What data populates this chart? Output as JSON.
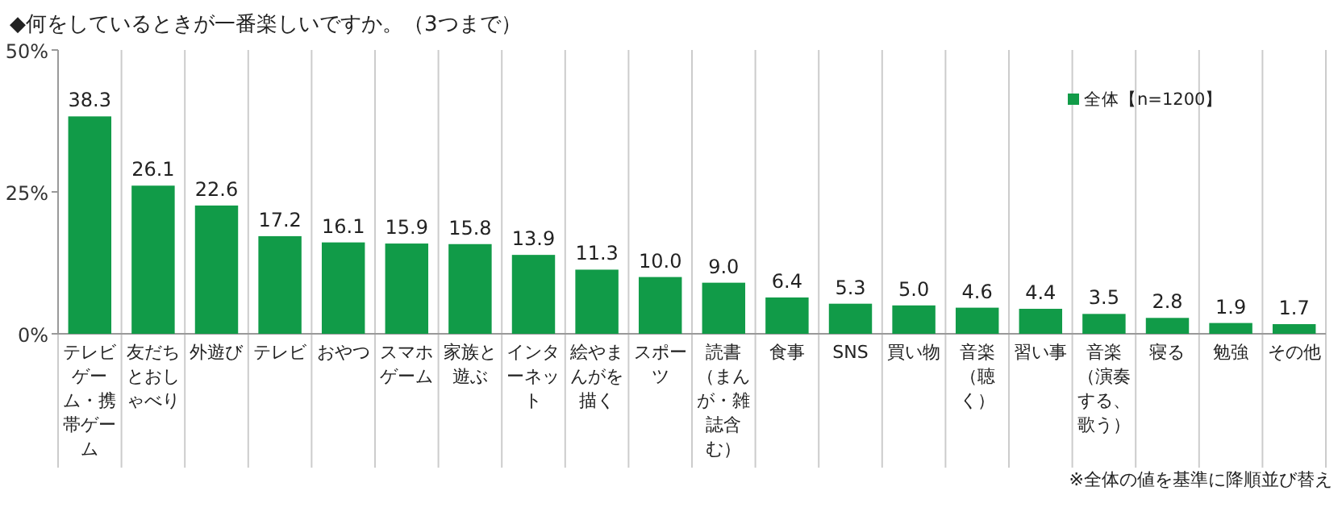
{
  "chart_data": {
    "type": "bar",
    "title": "◆何をしているときが一番楽しいですか。（3つまで）",
    "categories": [
      "テレビゲーム・携帯ゲーム",
      "友だちとおしゃべり",
      "外遊び",
      "テレビ",
      "おやつ",
      "スマホゲーム",
      "家族と遊ぶ",
      "インターネット",
      "絵やまんがを描く",
      "スポーツ",
      "読書（まんが・雑誌含む）",
      "食事",
      "SNS",
      "買い物",
      "音楽（聴く）",
      "習い事",
      "音楽（演奏する、歌う）",
      "寝る",
      "勉強",
      "その他"
    ],
    "series": [
      {
        "name": "全体【n=1200】",
        "color": "#119b48",
        "values": [
          38.3,
          26.1,
          22.6,
          17.2,
          16.1,
          15.9,
          15.8,
          13.9,
          11.3,
          10.0,
          9.0,
          6.4,
          5.3,
          5.0,
          4.6,
          4.4,
          3.5,
          2.8,
          1.9,
          1.7
        ]
      }
    ],
    "value_labels": [
      "38.3",
      "26.1",
      "22.6",
      "17.2",
      "16.1",
      "15.9",
      "15.8",
      "13.9",
      "11.3",
      "10.0",
      "9.0",
      "6.4",
      "5.3",
      "5.0",
      "4.6",
      "4.4",
      "3.5",
      "2.8",
      "1.9",
      "1.7"
    ],
    "ylim": [
      0,
      50
    ],
    "yticks": [
      {
        "value": 0,
        "label": "0%"
      },
      {
        "value": 25,
        "label": "25%"
      },
      {
        "value": 50,
        "label": "50%"
      }
    ],
    "grid": "x",
    "legend": "top right",
    "annotations": [
      "※全体の値を基準に降順並び替え"
    ]
  }
}
